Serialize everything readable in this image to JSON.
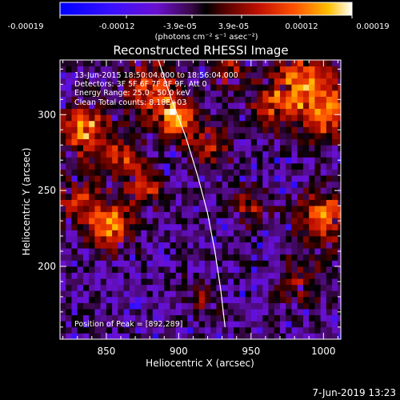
{
  "colorbar": {
    "tick_labels": [
      "-0.00019",
      "-0.00012",
      "-3.9e-05",
      "3.9e-05",
      "0.00012",
      "0.00019"
    ],
    "units_label": "(photons cm⁻² s⁻¹ asec⁻²)"
  },
  "chart_data": {
    "type": "heatmap",
    "title": "Reconstructed RHESSI Image",
    "xlabel": "Heliocentric X (arcsec)",
    "ylabel": "Heliocentric Y (arcsec)",
    "xlim": [
      818,
      1012
    ],
    "ylim": [
      152,
      336
    ],
    "x_ticks": [
      850,
      900,
      950,
      1000
    ],
    "y_ticks": [
      200,
      250,
      300
    ],
    "grid": false,
    "annotations": {
      "time_range": "13-Jun-2015 18:50:04.000 to 18:56:04.000",
      "detectors": "Detectors: 3F 5F 6F 7F 8F 9F, Att 0",
      "energy_range": "Energy Range: 25.0 - 50.0 keV",
      "method_counts": "Clean    Total counts: 8.18E+03",
      "peak": "Position of Peak = [892,289]"
    },
    "sources": [
      {
        "x": 880,
        "y": 318,
        "amp": 0.75,
        "sigma": 13
      },
      {
        "x": 898,
        "y": 298,
        "amp": 0.95,
        "sigma": 9
      },
      {
        "x": 920,
        "y": 280,
        "amp": 0.6,
        "sigma": 10
      },
      {
        "x": 835,
        "y": 290,
        "amp": 0.85,
        "sigma": 12
      },
      {
        "x": 860,
        "y": 270,
        "amp": 0.6,
        "sigma": 10
      },
      {
        "x": 878,
        "y": 252,
        "amp": 0.55,
        "sigma": 9
      },
      {
        "x": 852,
        "y": 228,
        "amp": 0.9,
        "sigma": 11
      },
      {
        "x": 830,
        "y": 245,
        "amp": 0.55,
        "sigma": 10
      },
      {
        "x": 985,
        "y": 322,
        "amp": 0.8,
        "sigma": 15
      },
      {
        "x": 1002,
        "y": 300,
        "amp": 0.75,
        "sigma": 12
      },
      {
        "x": 965,
        "y": 305,
        "amp": 0.5,
        "sigma": 10
      },
      {
        "x": 1000,
        "y": 232,
        "amp": 0.8,
        "sigma": 12
      },
      {
        "x": 950,
        "y": 240,
        "amp": 0.45,
        "sigma": 9
      },
      {
        "x": 985,
        "y": 190,
        "amp": 0.45,
        "sigma": 11
      },
      {
        "x": 915,
        "y": 180,
        "amp": 0.3,
        "sigma": 9
      },
      {
        "x": 935,
        "y": 330,
        "amp": 0.5,
        "sigma": 9
      }
    ],
    "limb_curve": [
      [
        886,
        336
      ],
      [
        895,
        310
      ],
      [
        905,
        285
      ],
      [
        913,
        260
      ],
      [
        920,
        235
      ],
      [
        925,
        210
      ],
      [
        929,
        185
      ],
      [
        932,
        160
      ]
    ]
  },
  "footer_timestamp": "7-Jun-2019 13:23"
}
